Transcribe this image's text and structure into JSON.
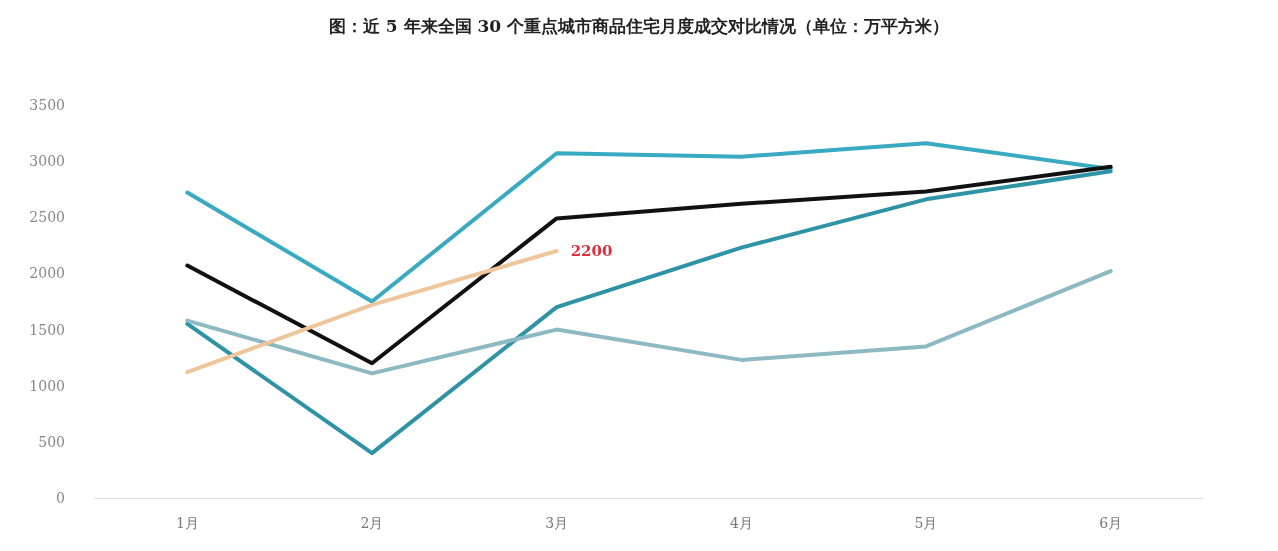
{
  "chart_data": {
    "type": "line",
    "title": "图：近 5 年来全国 30 个重点城市商品住宅月度成交对比情况（单位：万平方米）",
    "categories": [
      "1月",
      "2月",
      "3月",
      "4月",
      "5月",
      "6月"
    ],
    "series": [
      {
        "color": "#3aaac2",
        "values": [
          2720,
          1750,
          3070,
          3040,
          3160,
          2930
        ]
      },
      {
        "color": "#2f93a6",
        "values": [
          1550,
          400,
          1700,
          2230,
          2660,
          2910
        ]
      },
      {
        "color": "#8db9c2",
        "values": [
          1580,
          1110,
          1500,
          1230,
          1350,
          2020
        ]
      },
      {
        "color": "#111111",
        "values": [
          2070,
          1200,
          2490,
          2620,
          2730,
          2950
        ]
      },
      {
        "color": "#efc59c",
        "values": [
          1120,
          1720,
          2200,
          null,
          null,
          null
        ],
        "value_labels": [
          null,
          null,
          "2200",
          null,
          null,
          null
        ]
      }
    ],
    "ylim": [
      0,
      3500
    ],
    "yticks": [
      0,
      500,
      1000,
      1500,
      2000,
      2500,
      3000,
      3500
    ],
    "grid": false,
    "marker": "none",
    "line_style": "solid"
  }
}
